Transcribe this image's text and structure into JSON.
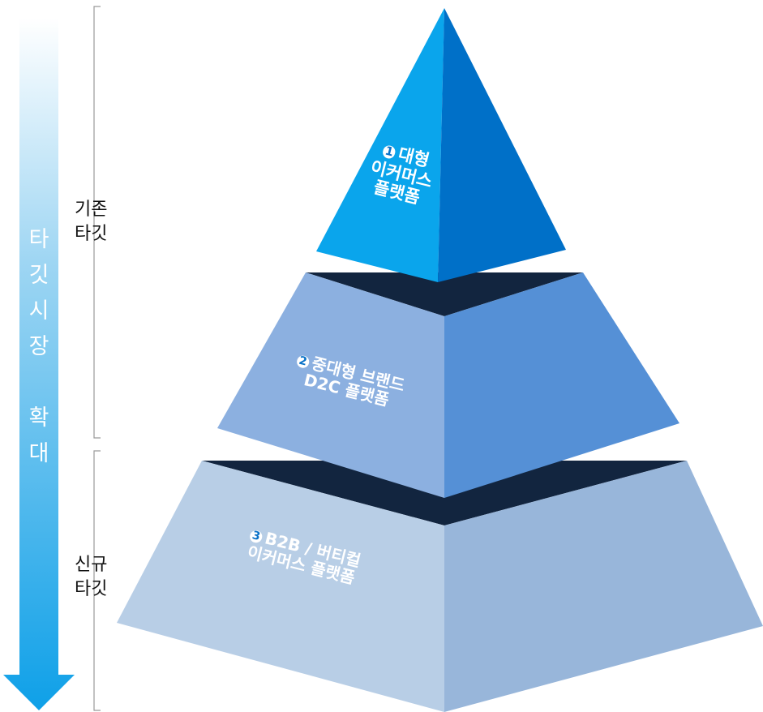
{
  "arrow": {
    "chars": [
      "타",
      "깃",
      "시",
      "장",
      "확",
      "대"
    ],
    "gradient_top": "#ffffff",
    "gradient_bottom": "#0ea0e8"
  },
  "brackets": [
    {
      "line1": "기존",
      "line2": "타깃"
    },
    {
      "line1": "신규",
      "line2": "타깃"
    }
  ],
  "tiers": [
    {
      "number": "1",
      "line1": "대형",
      "line2": "이커머스",
      "line3": "플랫폼",
      "left_color": "#0aa5ec",
      "right_color": "#0070c8"
    },
    {
      "number": "2",
      "line1": "중대형 브랜드",
      "line2": "D2C 플랫폼",
      "left_color": "#8cb0e0",
      "right_color": "#5590d6"
    },
    {
      "number": "3",
      "line1": "B2B / 버티컬",
      "line2": "이커머스 플랫폼",
      "left_color": "#b8cee6",
      "right_color": "#98b6da"
    }
  ],
  "colors": {
    "dark_gap": "#12253f"
  }
}
